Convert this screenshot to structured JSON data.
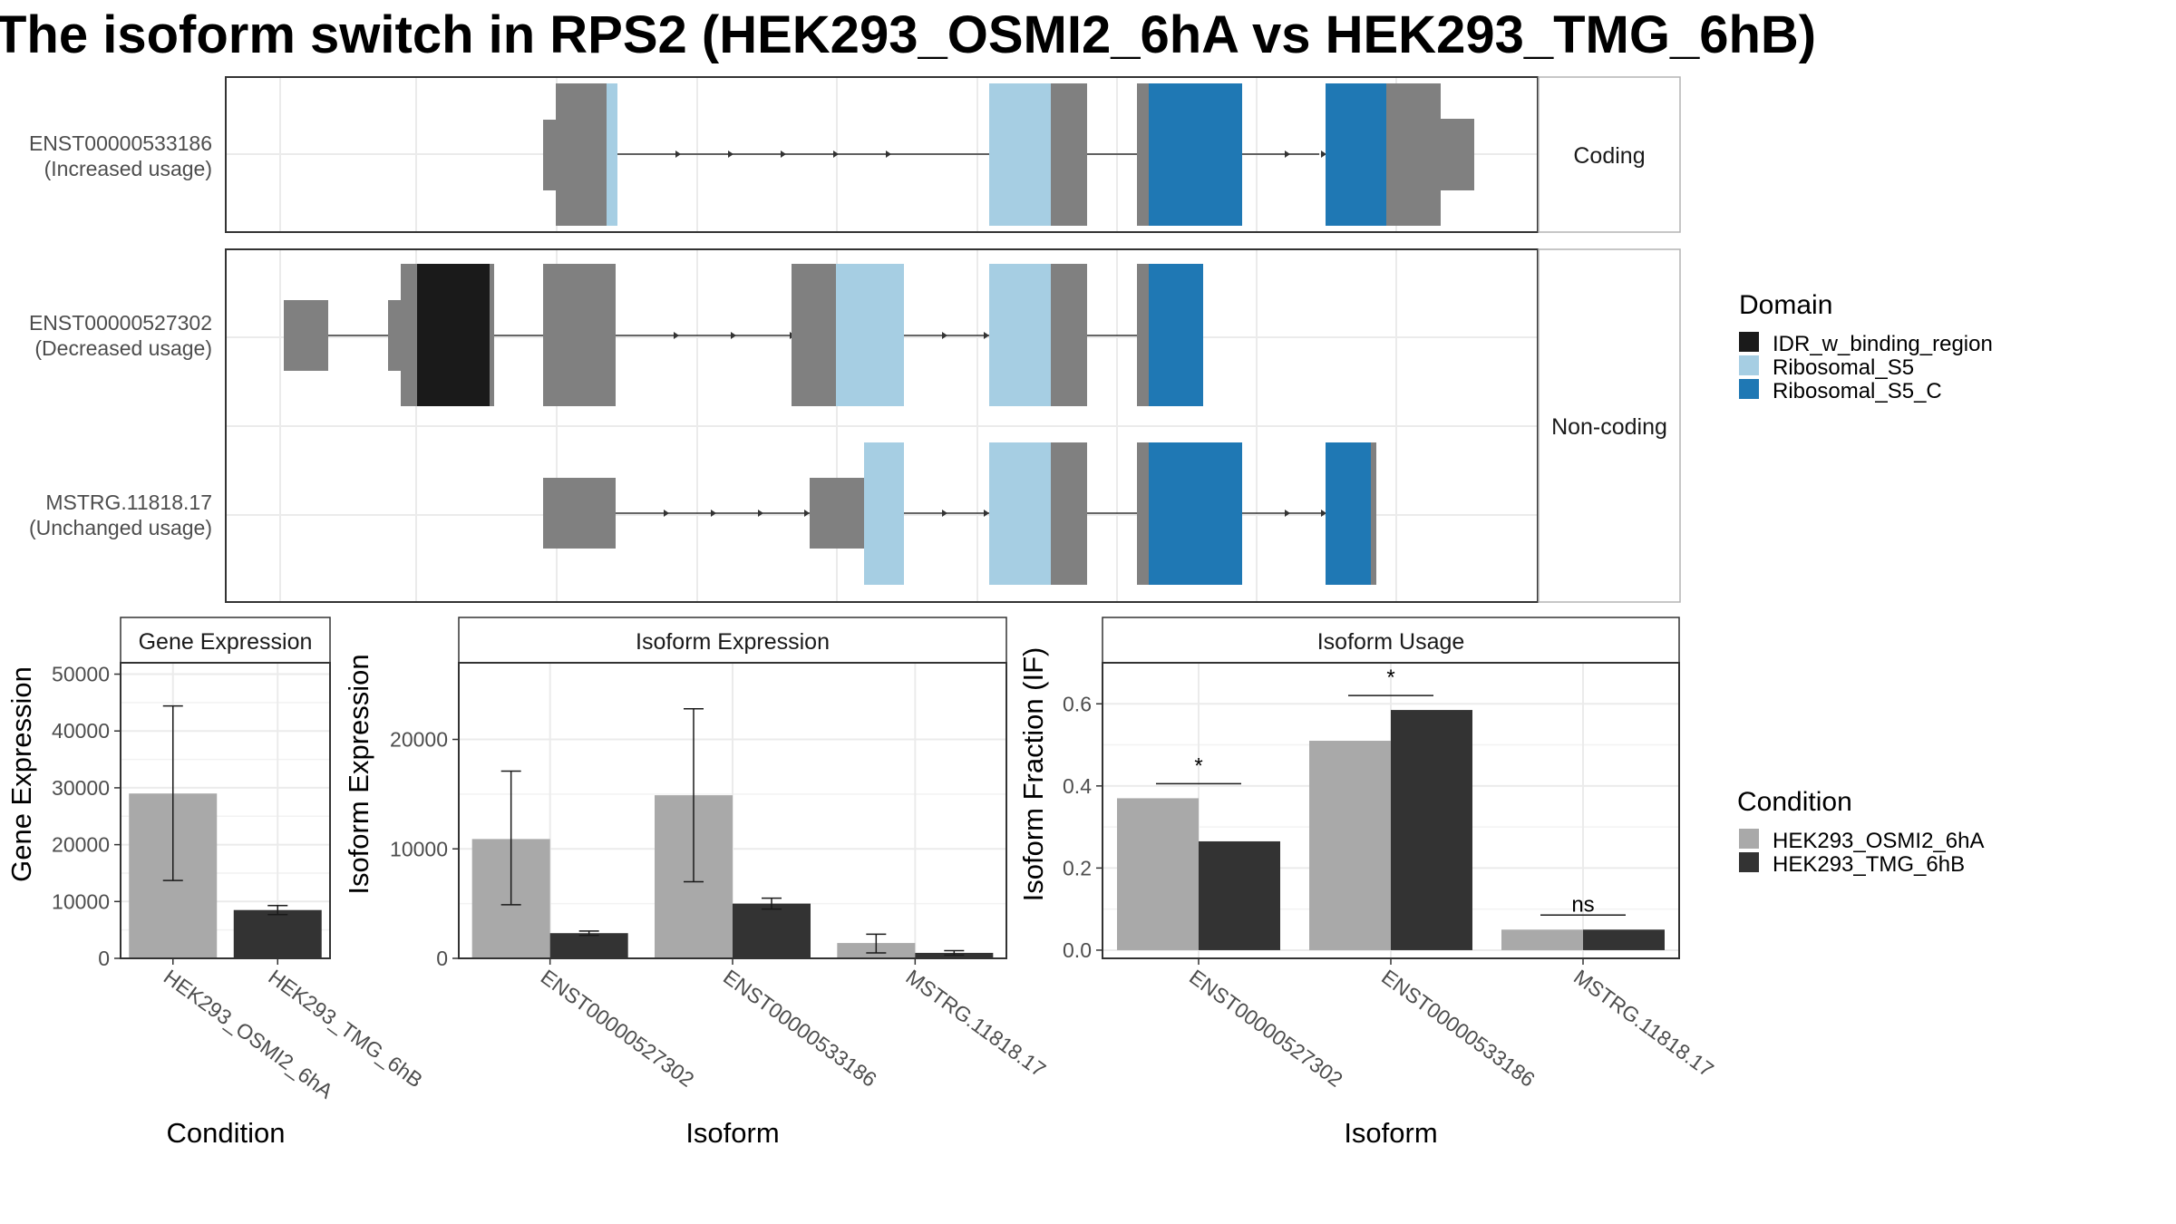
{
  "title": "The isoform switch in RPS2 (HEK293_OSMI2_6hA vs HEK293_TMG_6hB)",
  "colors": {
    "IDR_w_binding_region": "#1a1a1a",
    "Ribosomal_S5": "#a6cee3",
    "Ribosomal_S5_C": "#1f78b4",
    "exon": "#808080",
    "HEK293_OSMI2_6hA": "#a9a9a9",
    "HEK293_TMG_6hB": "#333333"
  },
  "structure": {
    "facets": [
      "Coding",
      "Non-coding"
    ],
    "transcripts": [
      {
        "id": "ENST00000533186",
        "usage": "(Increased usage)",
        "facet": "Coding"
      },
      {
        "id": "ENST00000527302",
        "usage": "(Decreased usage)",
        "facet": "Non-coding"
      },
      {
        "id": "MSTRG.11818.17",
        "usage": "(Unchanged usage)",
        "facet": "Non-coding"
      }
    ]
  },
  "legend": {
    "domain_title": "Domain",
    "domains": [
      "IDR_w_binding_region",
      "Ribosomal_S5",
      "Ribosomal_S5_C"
    ],
    "condition_title": "Condition",
    "conditions": [
      "HEK293_OSMI2_6hA",
      "HEK293_TMG_6hB"
    ]
  },
  "chart_data": [
    {
      "type": "bar",
      "title": "Gene Expression",
      "xlabel": "Condition",
      "ylabel": "Gene Expression",
      "ylim": [
        0,
        52000
      ],
      "yticks": [
        0,
        10000,
        20000,
        30000,
        40000,
        50000
      ],
      "categories": [
        "HEK293_OSMI2_6hA",
        "HEK293_TMG_6hB"
      ],
      "values": [
        29000,
        8500
      ],
      "error_low": [
        13700,
        7700
      ],
      "error_high": [
        44400,
        9300
      ]
    },
    {
      "type": "bar",
      "title": "Isoform Expression",
      "xlabel": "Isoform",
      "ylabel": "Isoform Expression",
      "ylim": [
        0,
        27000
      ],
      "yticks": [
        0,
        10000,
        20000
      ],
      "categories": [
        "ENST00000527302",
        "ENST00000533186",
        "MSTRG.11818.17"
      ],
      "series": [
        {
          "name": "HEK293_OSMI2_6hA",
          "values": [
            10900,
            14900,
            1400
          ],
          "error_low": [
            4900,
            7000,
            500
          ],
          "error_high": [
            17100,
            22800,
            2200
          ]
        },
        {
          "name": "HEK293_TMG_6hB",
          "values": [
            2300,
            5000,
            500
          ],
          "error_low": [
            2100,
            4500,
            300
          ],
          "error_high": [
            2500,
            5500,
            700
          ]
        }
      ]
    },
    {
      "type": "bar",
      "title": "Isoform Usage",
      "xlabel": "Isoform",
      "ylabel": "Isoform Fraction (IF)",
      "ylim": [
        -0.02,
        0.7
      ],
      "yticks": [
        0.0,
        0.2,
        0.4,
        0.6
      ],
      "ytick_labels": [
        "0.0",
        "0.2",
        "0.4",
        "0.6"
      ],
      "categories": [
        "ENST00000527302",
        "ENST00000533186",
        "MSTRG.11818.17"
      ],
      "series": [
        {
          "name": "HEK293_OSMI2_6hA",
          "values": [
            0.37,
            0.51,
            0.05
          ]
        },
        {
          "name": "HEK293_TMG_6hB",
          "values": [
            0.265,
            0.585,
            0.05
          ]
        }
      ],
      "significance": [
        "*",
        "*",
        "ns"
      ]
    }
  ]
}
